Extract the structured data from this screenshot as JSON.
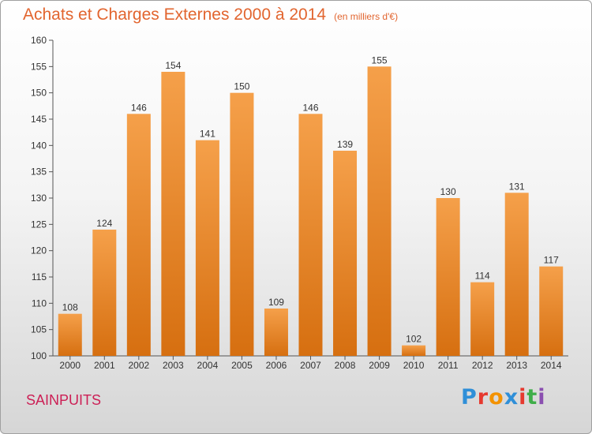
{
  "title": "Achats et Charges Externes 2000 à 2014",
  "unit": "(en milliers d'€)",
  "city": "SAINPUITS",
  "logo": {
    "text": "Proxiti",
    "colors": [
      "#2f8fd8",
      "#e6392f",
      "#f39200",
      "#2f8fd8",
      "#e6392f",
      "#3fae49",
      "#8a4fb0"
    ]
  },
  "chart_data": {
    "type": "bar",
    "categories": [
      "2000",
      "2001",
      "2002",
      "2003",
      "2004",
      "2005",
      "2006",
      "2007",
      "2008",
      "2009",
      "2010",
      "2011",
      "2012",
      "2013",
      "2014"
    ],
    "values": [
      108,
      124,
      146,
      154,
      141,
      150,
      109,
      146,
      139,
      155,
      102,
      130,
      114,
      131,
      117
    ],
    "ylim": [
      100,
      160
    ],
    "yticks": [
      100,
      105,
      110,
      115,
      120,
      125,
      130,
      135,
      140,
      145,
      150,
      155,
      160
    ],
    "grid": false,
    "bar_color": "#f5a04a",
    "bar_color_dark": "#d66f10"
  }
}
